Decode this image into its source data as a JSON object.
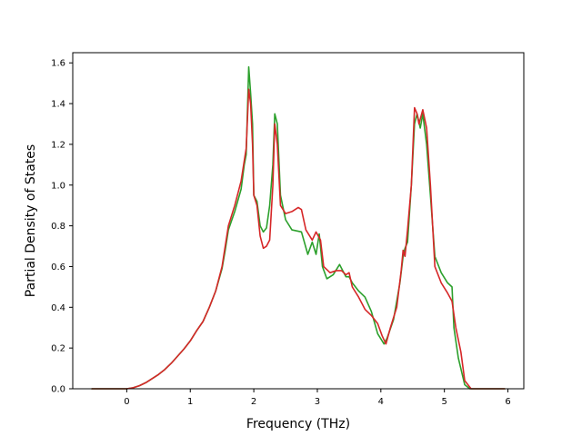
{
  "chart_data": {
    "type": "line",
    "title": "",
    "xlabel": "Frequency (THz)",
    "ylabel": "Partial Density of States",
    "xlim": [
      -0.85,
      6.25
    ],
    "ylim": [
      0.0,
      1.65
    ],
    "xticks": [
      0,
      1,
      2,
      3,
      4,
      5,
      6
    ],
    "yticks": [
      0.0,
      0.2,
      0.4,
      0.6,
      0.8,
      1.0,
      1.2,
      1.4,
      1.6
    ],
    "xtick_labels": [
      "0",
      "1",
      "2",
      "3",
      "4",
      "5",
      "6"
    ],
    "ytick_labels": [
      "0.0",
      "0.2",
      "0.4",
      "0.6",
      "0.8",
      "1.0",
      "1.2",
      "1.4",
      "1.6"
    ],
    "grid": false,
    "legend": "none",
    "series": [
      {
        "color": "#2ca02c",
        "points": [
          [
            -0.55,
            0.0
          ],
          [
            0.0,
            0.0
          ],
          [
            0.1,
            0.005
          ],
          [
            0.2,
            0.015
          ],
          [
            0.3,
            0.03
          ],
          [
            0.4,
            0.05
          ],
          [
            0.5,
            0.07
          ],
          [
            0.6,
            0.095
          ],
          [
            0.7,
            0.125
          ],
          [
            0.8,
            0.16
          ],
          [
            0.9,
            0.195
          ],
          [
            1.0,
            0.235
          ],
          [
            1.1,
            0.285
          ],
          [
            1.2,
            0.33
          ],
          [
            1.3,
            0.4
          ],
          [
            1.4,
            0.48
          ],
          [
            1.5,
            0.59
          ],
          [
            1.55,
            0.68
          ],
          [
            1.6,
            0.78
          ],
          [
            1.7,
            0.87
          ],
          [
            1.8,
            0.98
          ],
          [
            1.85,
            1.1
          ],
          [
            1.88,
            1.15
          ],
          [
            1.92,
            1.58
          ],
          [
            1.95,
            1.45
          ],
          [
            1.98,
            1.3
          ],
          [
            2.0,
            0.95
          ],
          [
            2.05,
            0.92
          ],
          [
            2.1,
            0.8
          ],
          [
            2.15,
            0.77
          ],
          [
            2.2,
            0.79
          ],
          [
            2.25,
            0.9
          ],
          [
            2.3,
            1.1
          ],
          [
            2.33,
            1.35
          ],
          [
            2.37,
            1.3
          ],
          [
            2.42,
            0.95
          ],
          [
            2.5,
            0.83
          ],
          [
            2.6,
            0.78
          ],
          [
            2.75,
            0.77
          ],
          [
            2.85,
            0.66
          ],
          [
            2.92,
            0.72
          ],
          [
            2.98,
            0.66
          ],
          [
            3.03,
            0.76
          ],
          [
            3.08,
            0.6
          ],
          [
            3.15,
            0.54
          ],
          [
            3.25,
            0.56
          ],
          [
            3.35,
            0.61
          ],
          [
            3.45,
            0.55
          ],
          [
            3.5,
            0.55
          ],
          [
            3.55,
            0.52
          ],
          [
            3.65,
            0.48
          ],
          [
            3.75,
            0.45
          ],
          [
            3.85,
            0.38
          ],
          [
            3.95,
            0.27
          ],
          [
            4.05,
            0.22
          ],
          [
            4.1,
            0.25
          ],
          [
            4.2,
            0.34
          ],
          [
            4.3,
            0.52
          ],
          [
            4.35,
            0.65
          ],
          [
            4.38,
            0.69
          ],
          [
            4.42,
            0.72
          ],
          [
            4.48,
            1.0
          ],
          [
            4.53,
            1.3
          ],
          [
            4.57,
            1.35
          ],
          [
            4.62,
            1.28
          ],
          [
            4.66,
            1.35
          ],
          [
            4.72,
            1.2
          ],
          [
            4.78,
            0.95
          ],
          [
            4.85,
            0.65
          ],
          [
            4.95,
            0.57
          ],
          [
            5.05,
            0.52
          ],
          [
            5.12,
            0.5
          ],
          [
            5.15,
            0.3
          ],
          [
            5.22,
            0.15
          ],
          [
            5.32,
            0.02
          ],
          [
            5.4,
            0.0
          ],
          [
            5.95,
            0.0
          ]
        ]
      },
      {
        "color": "#d62728",
        "points": [
          [
            -0.55,
            0.0
          ],
          [
            0.0,
            0.0
          ],
          [
            0.1,
            0.005
          ],
          [
            0.2,
            0.015
          ],
          [
            0.3,
            0.03
          ],
          [
            0.4,
            0.05
          ],
          [
            0.5,
            0.07
          ],
          [
            0.6,
            0.095
          ],
          [
            0.7,
            0.125
          ],
          [
            0.8,
            0.16
          ],
          [
            0.9,
            0.195
          ],
          [
            1.0,
            0.235
          ],
          [
            1.1,
            0.285
          ],
          [
            1.2,
            0.33
          ],
          [
            1.3,
            0.4
          ],
          [
            1.4,
            0.48
          ],
          [
            1.5,
            0.6
          ],
          [
            1.55,
            0.7
          ],
          [
            1.6,
            0.8
          ],
          [
            1.7,
            0.9
          ],
          [
            1.8,
            1.02
          ],
          [
            1.85,
            1.12
          ],
          [
            1.88,
            1.18
          ],
          [
            1.92,
            1.47
          ],
          [
            1.95,
            1.4
          ],
          [
            1.98,
            1.2
          ],
          [
            2.0,
            0.95
          ],
          [
            2.05,
            0.9
          ],
          [
            2.1,
            0.75
          ],
          [
            2.15,
            0.69
          ],
          [
            2.2,
            0.7
          ],
          [
            2.25,
            0.73
          ],
          [
            2.3,
            1.0
          ],
          [
            2.33,
            1.3
          ],
          [
            2.37,
            1.2
          ],
          [
            2.42,
            0.9
          ],
          [
            2.5,
            0.86
          ],
          [
            2.6,
            0.87
          ],
          [
            2.7,
            0.89
          ],
          [
            2.75,
            0.88
          ],
          [
            2.82,
            0.78
          ],
          [
            2.92,
            0.73
          ],
          [
            2.98,
            0.77
          ],
          [
            3.05,
            0.73
          ],
          [
            3.1,
            0.6
          ],
          [
            3.2,
            0.57
          ],
          [
            3.3,
            0.58
          ],
          [
            3.38,
            0.58
          ],
          [
            3.45,
            0.56
          ],
          [
            3.5,
            0.57
          ],
          [
            3.55,
            0.5
          ],
          [
            3.65,
            0.45
          ],
          [
            3.75,
            0.39
          ],
          [
            3.85,
            0.36
          ],
          [
            3.95,
            0.32
          ],
          [
            4.02,
            0.26
          ],
          [
            4.08,
            0.22
          ],
          [
            4.15,
            0.3
          ],
          [
            4.25,
            0.4
          ],
          [
            4.32,
            0.58
          ],
          [
            4.35,
            0.68
          ],
          [
            4.38,
            0.65
          ],
          [
            4.42,
            0.78
          ],
          [
            4.48,
            1.0
          ],
          [
            4.53,
            1.38
          ],
          [
            4.57,
            1.35
          ],
          [
            4.6,
            1.3
          ],
          [
            4.66,
            1.37
          ],
          [
            4.72,
            1.28
          ],
          [
            4.78,
            1.0
          ],
          [
            4.85,
            0.6
          ],
          [
            4.95,
            0.52
          ],
          [
            5.05,
            0.47
          ],
          [
            5.12,
            0.43
          ],
          [
            5.18,
            0.3
          ],
          [
            5.26,
            0.18
          ],
          [
            5.32,
            0.04
          ],
          [
            5.42,
            0.0
          ],
          [
            5.95,
            0.0
          ]
        ]
      }
    ]
  }
}
